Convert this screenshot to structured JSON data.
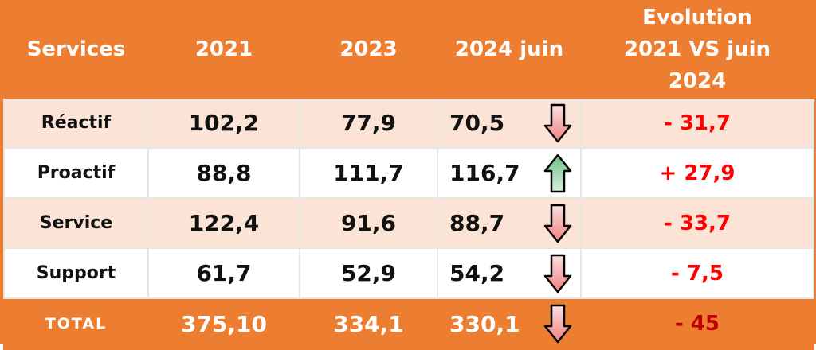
{
  "header": [
    "Services",
    "2021",
    "2023",
    "2024 juin",
    "Evolution 2021 VS juin 2024"
  ],
  "rows": [
    [
      "Réactif",
      "102,2",
      "77,9",
      "70,5",
      "- 31,7"
    ],
    [
      "Proactif",
      "88,8",
      "111,7",
      "116,7",
      "+ 27,9"
    ],
    [
      "Service",
      "122,4",
      "91,6",
      "88,7",
      "- 33,7"
    ],
    [
      "Support",
      "61,7",
      "52,9",
      "54,2",
      "- 7,5"
    ]
  ],
  "total": [
    "TOTAL",
    "375,10",
    "334,1",
    "330,1",
    "- 45"
  ]
}
